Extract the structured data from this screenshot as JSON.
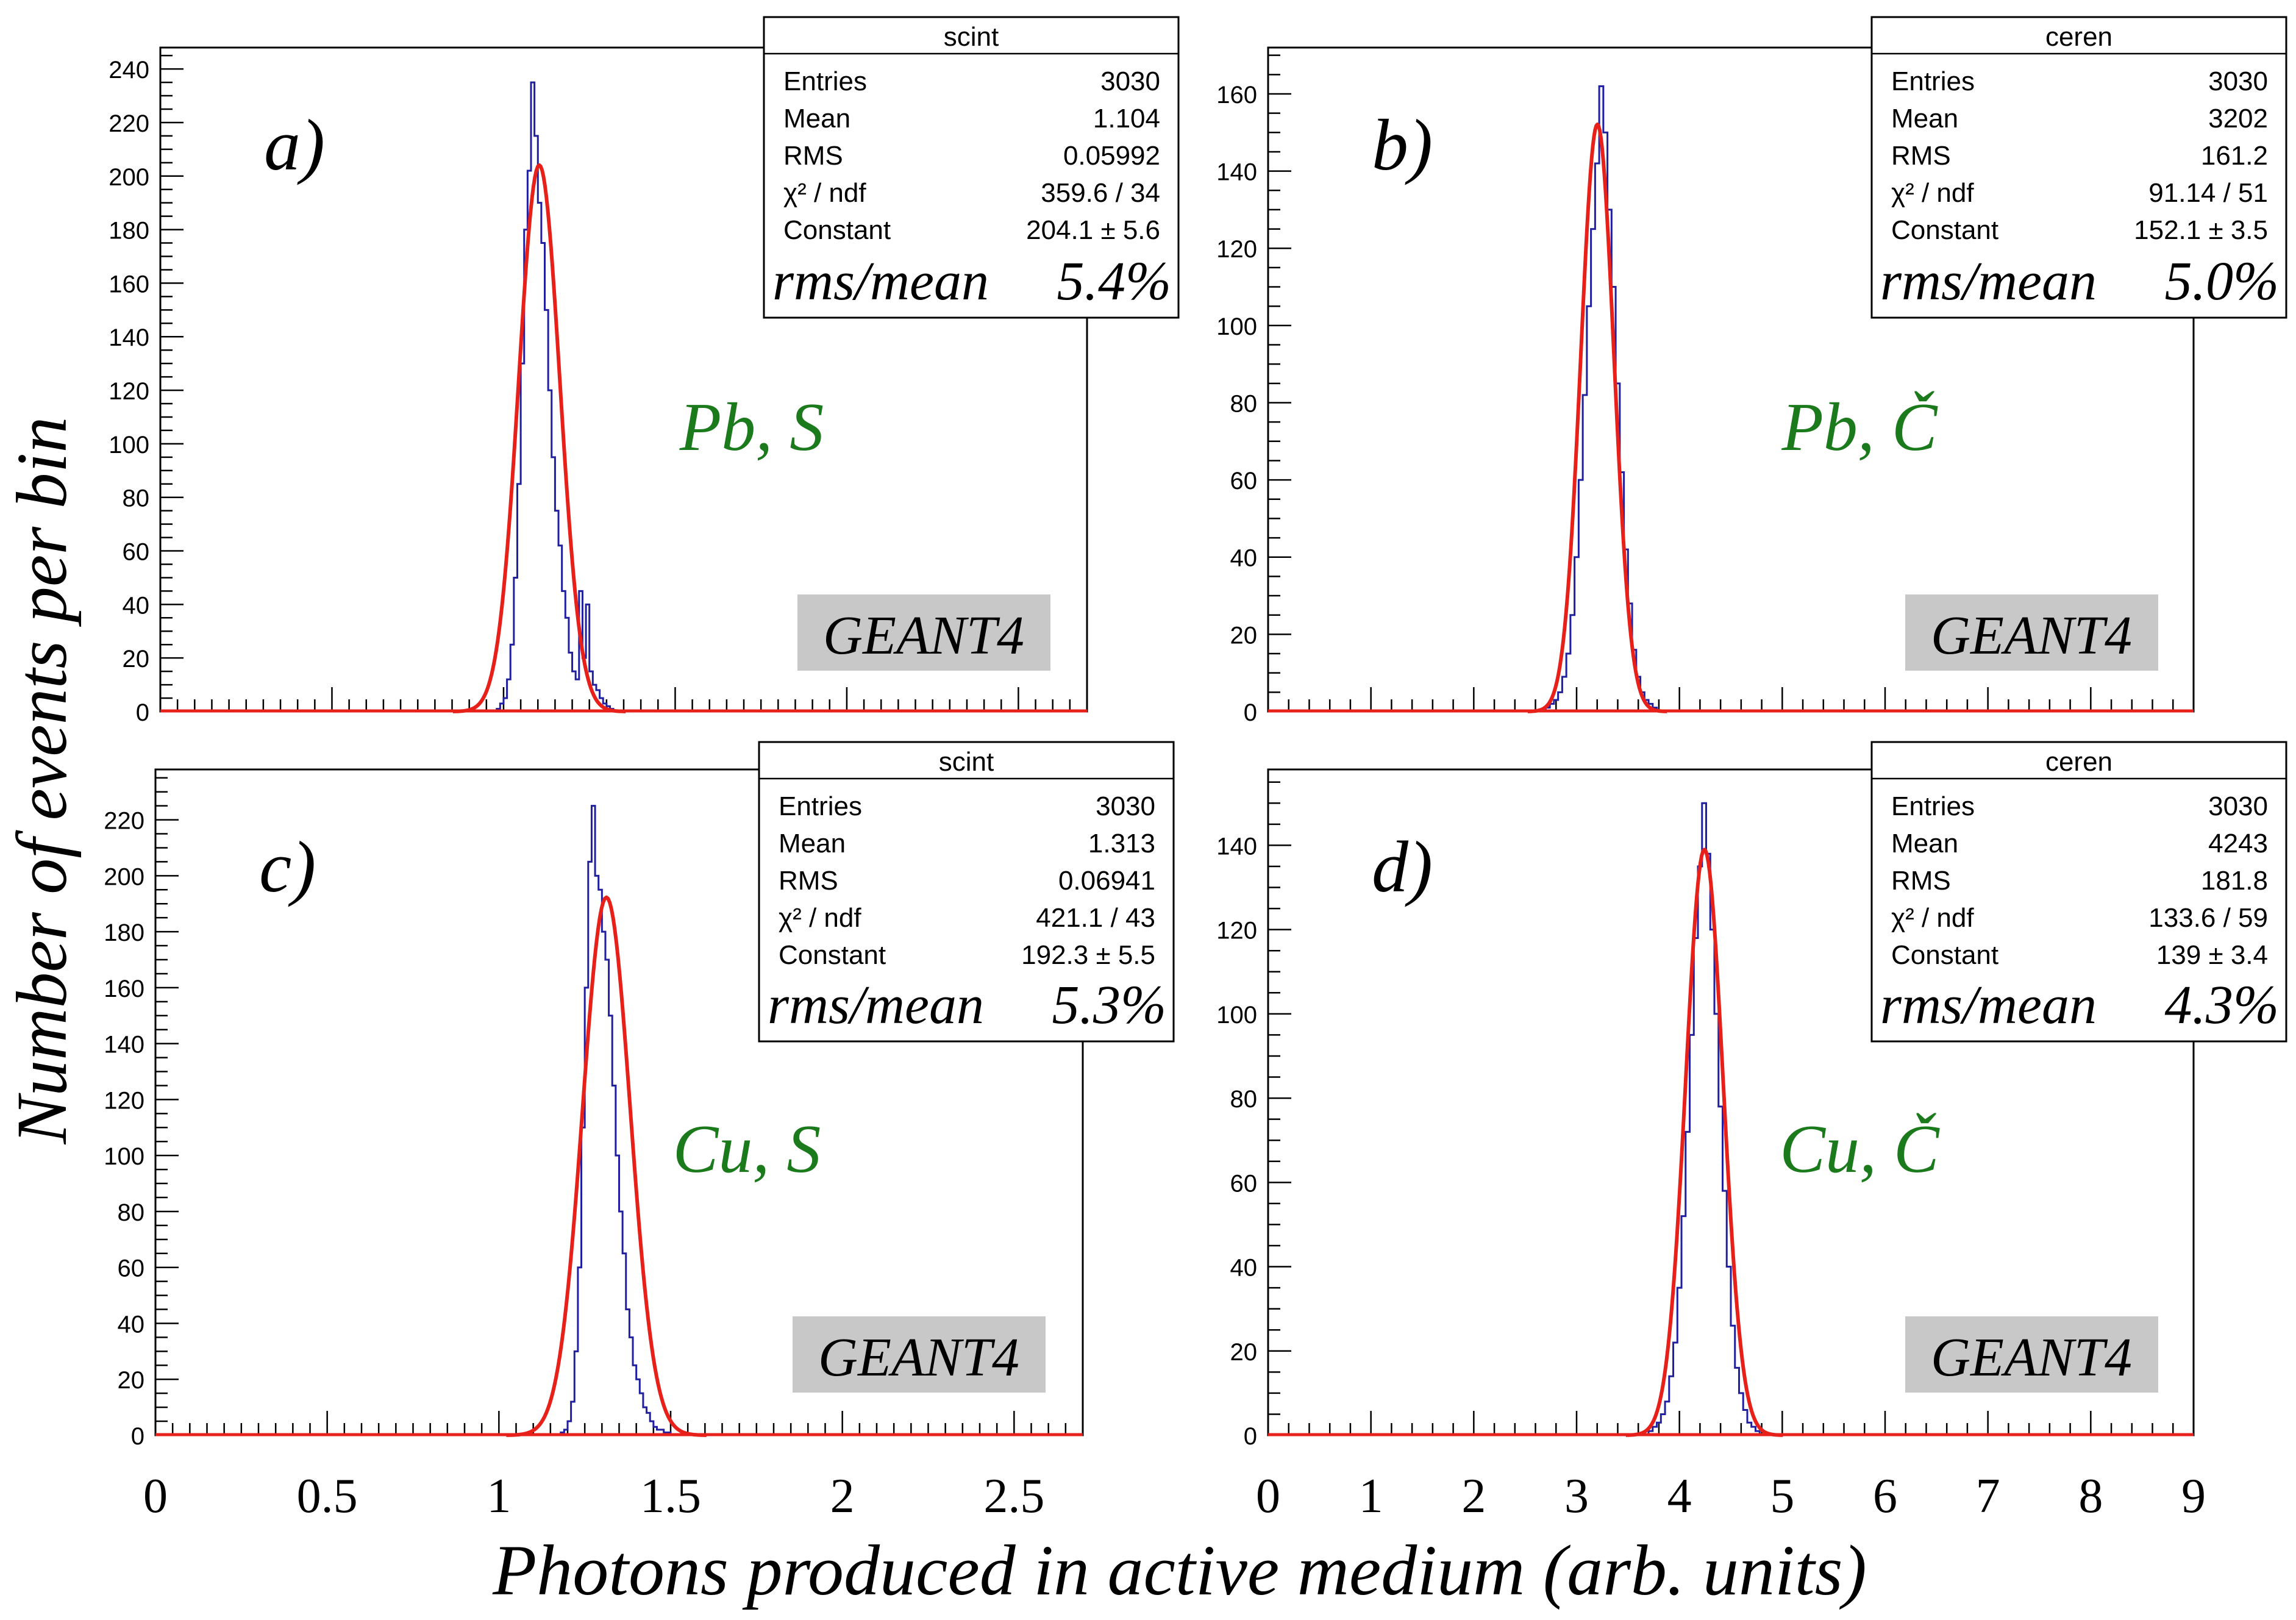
{
  "figure": {
    "ylabel": "Number of events per bin",
    "xlabel": "Photons produced in active medium (arb. units)"
  },
  "colors": {
    "histogram": "#1f1f9f",
    "fit": "#e8201a",
    "material_label": "#1b7a1b",
    "geant_box": "#c8c8c8"
  },
  "chart_data": [
    {
      "id": "a",
      "type": "histogram",
      "panel_label": "a)",
      "material_label": "Pb, S",
      "geant_label": "GEANT4",
      "stats": {
        "title": "scint",
        "rows": [
          {
            "k": "Entries",
            "v": "3030"
          },
          {
            "k": "Mean",
            "v": "1.104"
          },
          {
            "k": "RMS",
            "v": "0.05992"
          },
          {
            "k": "χ² / ndf",
            "v": "359.6 / 34"
          },
          {
            "k": "Constant",
            "v": "204.1 ± 5.6"
          }
        ],
        "ratio_label": "rms/mean",
        "ratio_value": "5.4%"
      },
      "xlim": [
        0,
        2.7
      ],
      "ylim": [
        0,
        248
      ],
      "yticks": [
        "0",
        "20",
        "40",
        "60",
        "80",
        "100",
        "120",
        "140",
        "160",
        "180",
        "200",
        "220",
        "240"
      ],
      "fit": {
        "constant": 204.1,
        "mean": 1.104,
        "sigma": 0.0599
      },
      "hist": {
        "bin_width": 0.01,
        "start": 0.98,
        "counts": [
          1,
          3,
          5,
          12,
          25,
          50,
          85,
          130,
          180,
          202,
          235,
          215,
          190,
          175,
          150,
          120,
          95,
          75,
          62,
          45,
          35,
          22,
          15,
          12,
          45,
          20,
          40,
          15,
          10,
          8,
          5,
          3,
          2,
          1
        ]
      }
    },
    {
      "id": "b",
      "type": "histogram",
      "panel_label": "b)",
      "material_label": "Pb, Č",
      "geant_label": "GEANT4",
      "stats": {
        "title": "ceren",
        "rows": [
          {
            "k": "Entries",
            "v": "3030"
          },
          {
            "k": "Mean",
            "v": "3202"
          },
          {
            "k": "RMS",
            "v": "161.2"
          },
          {
            "k": "χ² / ndf",
            "v": "91.14 / 51"
          },
          {
            "k": "Constant",
            "v": "152.1 ± 3.5"
          }
        ],
        "ratio_label": "rms/mean",
        "ratio_value": "5.0%"
      },
      "xlim": [
        0,
        9
      ],
      "ylim": [
        0,
        172
      ],
      "yticks": [
        "0",
        "20",
        "40",
        "60",
        "80",
        "100",
        "120",
        "140",
        "160"
      ],
      "fit": {
        "constant": 152.1,
        "mean": 3.202,
        "sigma": 0.1612
      },
      "hist": {
        "bin_width": 0.04,
        "start": 2.7,
        "counts": [
          1,
          2,
          3,
          5,
          9,
          15,
          25,
          40,
          60,
          82,
          105,
          125,
          142,
          162,
          150,
          130,
          110,
          85,
          62,
          42,
          28,
          16,
          9,
          5,
          3,
          2,
          1
        ]
      }
    },
    {
      "id": "c",
      "type": "histogram",
      "panel_label": "c)",
      "material_label": "Cu, S",
      "geant_label": "GEANT4",
      "stats": {
        "title": "scint",
        "rows": [
          {
            "k": "Entries",
            "v": "3030"
          },
          {
            "k": "Mean",
            "v": "1.313"
          },
          {
            "k": "RMS",
            "v": "0.06941"
          },
          {
            "k": "χ² / ndf",
            "v": "421.1 / 43"
          },
          {
            "k": "Constant",
            "v": "192.3 ± 5.5"
          }
        ],
        "ratio_label": "rms/mean",
        "ratio_value": "5.3%"
      },
      "xlim": [
        0,
        2.7
      ],
      "ylim": [
        0,
        238
      ],
      "yticks": [
        "0",
        "20",
        "40",
        "60",
        "80",
        "100",
        "120",
        "140",
        "160",
        "180",
        "200",
        "220"
      ],
      "fit": {
        "constant": 192.3,
        "mean": 1.313,
        "sigma": 0.0694
      },
      "hist": {
        "bin_width": 0.01,
        "start": 1.18,
        "counts": [
          1,
          2,
          5,
          12,
          30,
          60,
          110,
          160,
          205,
          225,
          200,
          195,
          180,
          170,
          150,
          125,
          100,
          80,
          65,
          45,
          35,
          25,
          20,
          15,
          10,
          8,
          5,
          3,
          2,
          2,
          1,
          1
        ]
      }
    },
    {
      "id": "d",
      "type": "histogram",
      "panel_label": "d)",
      "material_label": "Cu, Č",
      "geant_label": "GEANT4",
      "stats": {
        "title": "ceren",
        "rows": [
          {
            "k": "Entries",
            "v": "3030"
          },
          {
            "k": "Mean",
            "v": "4243"
          },
          {
            "k": "RMS",
            "v": "181.8"
          },
          {
            "k": "χ² / ndf",
            "v": "133.6 / 59"
          },
          {
            "k": "Constant",
            "v": "139 ± 3.4"
          }
        ],
        "ratio_label": "rms/mean",
        "ratio_value": "4.3%"
      },
      "xlim": [
        0,
        9
      ],
      "ylim": [
        0,
        158
      ],
      "yticks": [
        "0",
        "20",
        "40",
        "60",
        "80",
        "100",
        "120",
        "140"
      ],
      "fit": {
        "constant": 139,
        "mean": 4.243,
        "sigma": 0.1818
      },
      "hist": {
        "bin_width": 0.04,
        "start": 3.7,
        "counts": [
          1,
          2,
          3,
          5,
          8,
          14,
          22,
          35,
          52,
          72,
          95,
          118,
          135,
          150,
          138,
          120,
          100,
          78,
          58,
          40,
          26,
          16,
          10,
          6,
          3,
          2,
          1
        ]
      }
    }
  ],
  "bottom_axes": [
    {
      "ticks": [
        "0",
        "0.5",
        "1",
        "1.5",
        "2",
        "2.5"
      ],
      "values": [
        0,
        0.5,
        1,
        1.5,
        2,
        2.5
      ],
      "xlim": [
        0,
        2.7
      ]
    },
    {
      "ticks": [
        "0",
        "1",
        "2",
        "3",
        "4",
        "5",
        "6",
        "7",
        "8",
        "9"
      ],
      "values": [
        0,
        1,
        2,
        3,
        4,
        5,
        6,
        7,
        8,
        9
      ],
      "xlim": [
        0,
        9
      ]
    }
  ]
}
